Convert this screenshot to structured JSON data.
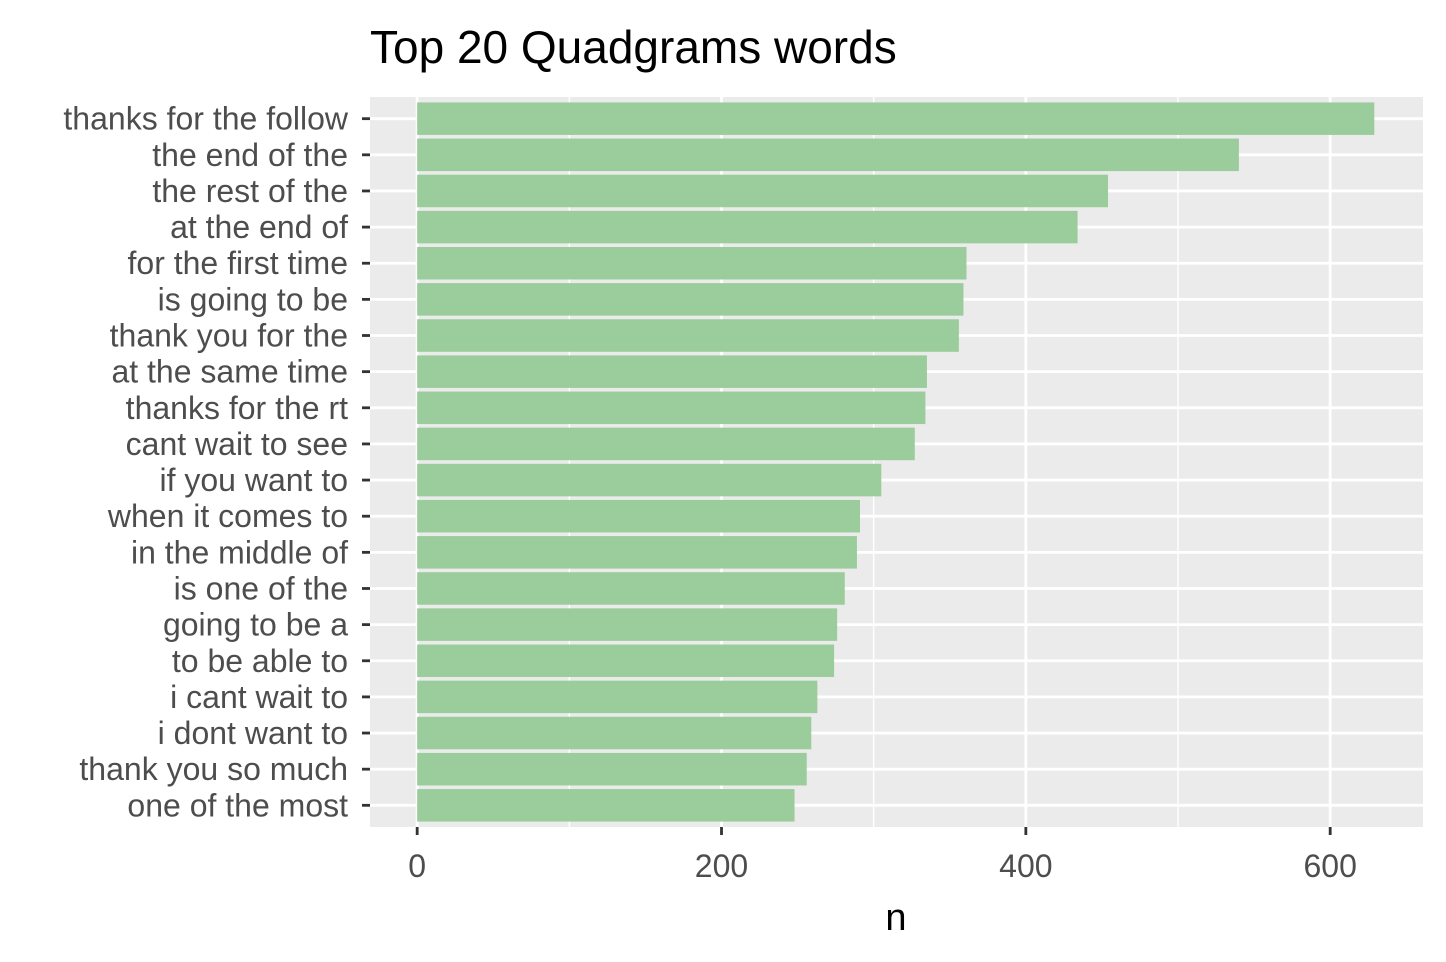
{
  "chart_data": {
    "type": "bar",
    "orientation": "horizontal",
    "title": "Top 20 Quadgrams words",
    "xlabel": "n",
    "ylabel": "",
    "categories": [
      "thanks for the follow",
      "the end of the",
      "the rest of the",
      "at the end of",
      "for the first time",
      "is going to be",
      "thank you for the",
      "at the same time",
      "thanks for the rt",
      "cant wait to see",
      "if you want to",
      "when it comes to",
      "in the middle of",
      "is one of the",
      "going to be a",
      "to be able to",
      "i cant wait to",
      "i dont want to",
      "thank you so much",
      "one of the most"
    ],
    "values": [
      629,
      540,
      454,
      434,
      361,
      359,
      356,
      335,
      334,
      327,
      305,
      291,
      289,
      281,
      276,
      274,
      263,
      259,
      256,
      248
    ],
    "xlim": [
      -31,
      661
    ],
    "xticks": [
      0,
      200,
      400,
      600
    ],
    "xtick_labels": [
      "0",
      "200",
      "400",
      "600"
    ],
    "grid": true,
    "legend": "none",
    "colors": {
      "bar": "#9bcc9b",
      "panel": "#ebebeb",
      "grid": "#ffffff",
      "text": "#4d4d4d",
      "tick": "#333333"
    }
  }
}
